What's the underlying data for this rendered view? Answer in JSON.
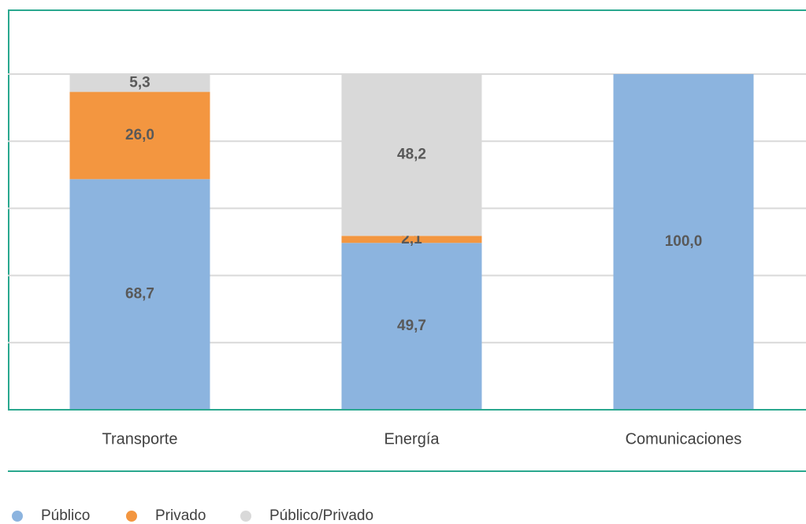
{
  "chart_data": {
    "type": "bar",
    "stacked": true,
    "categories": [
      "Transporte",
      "Energía",
      "Comunicaciones"
    ],
    "series": [
      {
        "name": "Público",
        "color": "#8cb4df",
        "values": [
          68.7,
          49.7,
          100
        ],
        "value_labels": [
          "68,7",
          "49,7",
          "100,0"
        ]
      },
      {
        "name": "Privado",
        "color": "#f39640",
        "values": [
          26.0,
          2.1,
          0
        ],
        "value_labels": [
          "26,0",
          "2,1",
          null
        ]
      },
      {
        "name": "Público/Privado",
        "color": "#d9d9d9",
        "values": [
          5.3,
          48.2,
          0
        ],
        "value_labels": [
          "5,3",
          "48,2",
          null
        ]
      }
    ],
    "ylim": [
      0,
      100
    ],
    "yticks": [
      0,
      20,
      40,
      60,
      80,
      100
    ],
    "grid": true,
    "legend": "bottom-left"
  }
}
